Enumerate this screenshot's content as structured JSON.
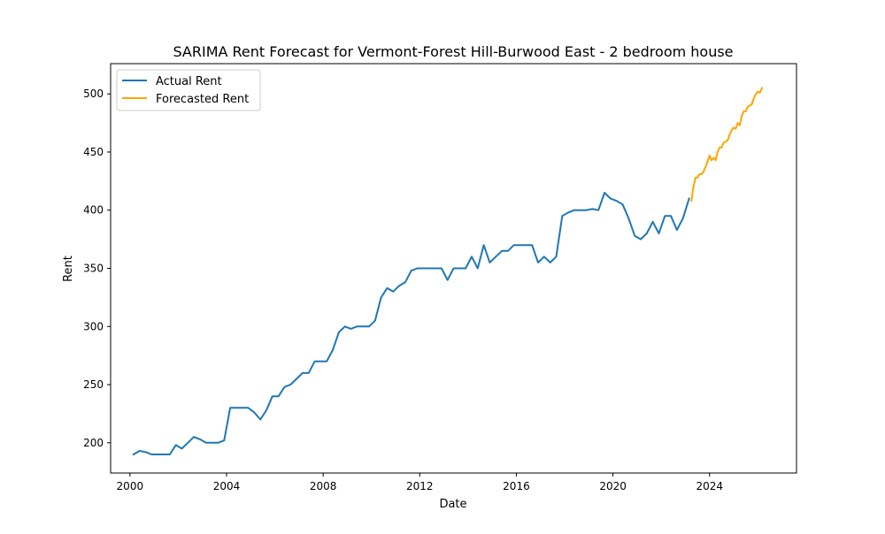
{
  "chart_data": {
    "type": "line",
    "title": "SARIMA Rent Forecast for Vermont-Forest Hill-Burwood East - 2 bedroom house",
    "xlabel": "Date",
    "ylabel": "Rent",
    "x_ticks": [
      "2000",
      "2004",
      "2008",
      "2012",
      "2016",
      "2020",
      "2024"
    ],
    "y_ticks": [
      200,
      250,
      300,
      350,
      400,
      450,
      500
    ],
    "xlim": [
      1999.2,
      2027.6
    ],
    "ylim": [
      174,
      526
    ],
    "grid": false,
    "legend_position": "upper left",
    "series": [
      {
        "name": "Actual Rent",
        "color": "#1f77b4",
        "points": [
          [
            2000.15,
            190
          ],
          [
            2000.4,
            193
          ],
          [
            2000.65,
            192
          ],
          [
            2000.9,
            190
          ],
          [
            2001.15,
            190
          ],
          [
            2001.4,
            190
          ],
          [
            2001.65,
            190
          ],
          [
            2001.9,
            198
          ],
          [
            2002.15,
            195
          ],
          [
            2002.4,
            200
          ],
          [
            2002.65,
            205
          ],
          [
            2002.9,
            203
          ],
          [
            2003.15,
            200
          ],
          [
            2003.4,
            200
          ],
          [
            2003.65,
            200
          ],
          [
            2003.9,
            202
          ],
          [
            2004.15,
            230
          ],
          [
            2004.4,
            230
          ],
          [
            2004.65,
            230
          ],
          [
            2004.9,
            230
          ],
          [
            2005.15,
            226
          ],
          [
            2005.4,
            220
          ],
          [
            2005.65,
            228
          ],
          [
            2005.9,
            240
          ],
          [
            2006.15,
            240
          ],
          [
            2006.4,
            248
          ],
          [
            2006.65,
            250
          ],
          [
            2006.9,
            255
          ],
          [
            2007.15,
            260
          ],
          [
            2007.4,
            260
          ],
          [
            2007.65,
            270
          ],
          [
            2007.9,
            270
          ],
          [
            2008.15,
            270
          ],
          [
            2008.4,
            280
          ],
          [
            2008.65,
            295
          ],
          [
            2008.9,
            300
          ],
          [
            2009.15,
            298
          ],
          [
            2009.4,
            300
          ],
          [
            2009.65,
            300
          ],
          [
            2009.9,
            300
          ],
          [
            2010.15,
            305
          ],
          [
            2010.4,
            325
          ],
          [
            2010.65,
            333
          ],
          [
            2010.9,
            330
          ],
          [
            2011.15,
            335
          ],
          [
            2011.4,
            338
          ],
          [
            2011.65,
            348
          ],
          [
            2011.9,
            350
          ],
          [
            2012.15,
            350
          ],
          [
            2012.4,
            350
          ],
          [
            2012.65,
            350
          ],
          [
            2012.9,
            350
          ],
          [
            2013.15,
            340
          ],
          [
            2013.4,
            350
          ],
          [
            2013.65,
            350
          ],
          [
            2013.9,
            350
          ],
          [
            2014.15,
            360
          ],
          [
            2014.4,
            350
          ],
          [
            2014.65,
            370
          ],
          [
            2014.9,
            355
          ],
          [
            2015.15,
            360
          ],
          [
            2015.4,
            365
          ],
          [
            2015.65,
            365
          ],
          [
            2015.9,
            370
          ],
          [
            2016.15,
            370
          ],
          [
            2016.4,
            370
          ],
          [
            2016.65,
            370
          ],
          [
            2016.9,
            355
          ],
          [
            2017.15,
            360
          ],
          [
            2017.4,
            355
          ],
          [
            2017.65,
            360
          ],
          [
            2017.9,
            395
          ],
          [
            2018.15,
            398
          ],
          [
            2018.4,
            400
          ],
          [
            2018.65,
            400
          ],
          [
            2018.9,
            400
          ],
          [
            2019.15,
            401
          ],
          [
            2019.4,
            400
          ],
          [
            2019.65,
            415
          ],
          [
            2019.9,
            410
          ],
          [
            2020.15,
            408
          ],
          [
            2020.4,
            405
          ],
          [
            2020.65,
            393
          ],
          [
            2020.9,
            378
          ],
          [
            2021.15,
            375
          ],
          [
            2021.4,
            380
          ],
          [
            2021.65,
            390
          ],
          [
            2021.9,
            380
          ],
          [
            2022.15,
            395
          ],
          [
            2022.4,
            395
          ],
          [
            2022.65,
            383
          ],
          [
            2022.9,
            393
          ],
          [
            2023.15,
            410
          ]
        ]
      },
      {
        "name": "Forecasted Rent",
        "color": "#ffa500",
        "points": [
          [
            2023.25,
            408
          ],
          [
            2023.33,
            420
          ],
          [
            2023.42,
            428
          ],
          [
            2023.5,
            428
          ],
          [
            2023.58,
            431
          ],
          [
            2023.67,
            431
          ],
          [
            2023.75,
            433
          ],
          [
            2023.83,
            437
          ],
          [
            2023.92,
            442
          ],
          [
            2024.0,
            447
          ],
          [
            2024.08,
            443
          ],
          [
            2024.17,
            445
          ],
          [
            2024.25,
            443
          ],
          [
            2024.33,
            450
          ],
          [
            2024.42,
            454
          ],
          [
            2024.5,
            454
          ],
          [
            2024.58,
            458
          ],
          [
            2024.67,
            459
          ],
          [
            2024.75,
            460
          ],
          [
            2024.83,
            465
          ],
          [
            2024.92,
            469
          ],
          [
            2025.0,
            471
          ],
          [
            2025.08,
            470
          ],
          [
            2025.17,
            475
          ],
          [
            2025.25,
            473
          ],
          [
            2025.33,
            481
          ],
          [
            2025.42,
            485
          ],
          [
            2025.5,
            485
          ],
          [
            2025.58,
            489
          ],
          [
            2025.67,
            490
          ],
          [
            2025.75,
            491
          ],
          [
            2025.83,
            496
          ],
          [
            2025.92,
            500
          ],
          [
            2026.0,
            502
          ],
          [
            2026.08,
            501
          ],
          [
            2026.17,
            505
          ]
        ]
      }
    ]
  }
}
